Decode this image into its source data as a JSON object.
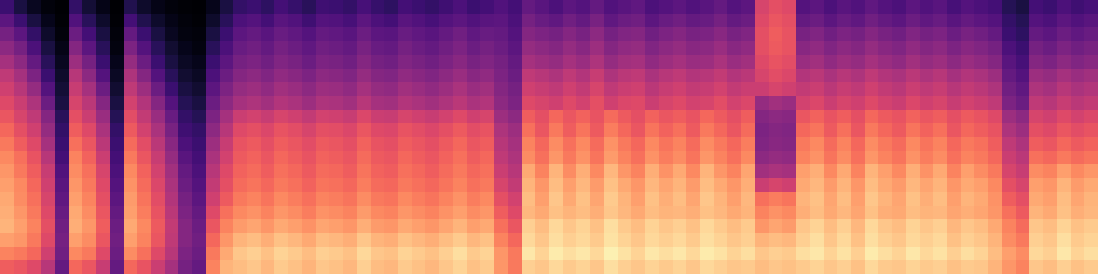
{
  "chart_data": {
    "type": "heatmap",
    "tick_labels": false,
    "color": "magma",
    "zlim": [
      0,
      100
    ],
    "z": [
      [
        20,
        12,
        6,
        2,
        0,
        18,
        10,
        4,
        0,
        14,
        8,
        4,
        2,
        1,
        0,
        5,
        12,
        18,
        20,
        17,
        22,
        19,
        16,
        21,
        20,
        18,
        23,
        19,
        17,
        22,
        20,
        18,
        21,
        24,
        20,
        22,
        25,
        22,
        30,
        27,
        24,
        28,
        26,
        30,
        25,
        27,
        29,
        24,
        26,
        28,
        25,
        27,
        30,
        26,
        28,
        58,
        62,
        60,
        26,
        28,
        24,
        27,
        25,
        29,
        26,
        24,
        28,
        25,
        27,
        23,
        26,
        24,
        22,
        15,
        12,
        22,
        20,
        24,
        21,
        23
      ],
      [
        28,
        20,
        12,
        5,
        1,
        25,
        16,
        8,
        1,
        22,
        14,
        8,
        4,
        2,
        1,
        8,
        16,
        24,
        26,
        22,
        27,
        25,
        21,
        26,
        25,
        23,
        28,
        24,
        22,
        27,
        25,
        23,
        26,
        28,
        25,
        27,
        28,
        24,
        34,
        31,
        29,
        33,
        30,
        35,
        29,
        32,
        33,
        28,
        31,
        33,
        30,
        31,
        34,
        30,
        32,
        60,
        64,
        62,
        30,
        32,
        28,
        31,
        29,
        33,
        30,
        28,
        32,
        29,
        31,
        27,
        30,
        28,
        26,
        18,
        15,
        26,
        24,
        28,
        25,
        27
      ],
      [
        34,
        28,
        18,
        8,
        2,
        32,
        22,
        12,
        2,
        30,
        20,
        12,
        6,
        3,
        2,
        12,
        20,
        28,
        30,
        27,
        31,
        29,
        26,
        30,
        29,
        27,
        32,
        28,
        27,
        31,
        29,
        27,
        30,
        33,
        29,
        31,
        30,
        26,
        38,
        36,
        34,
        38,
        35,
        40,
        34,
        37,
        38,
        33,
        36,
        38,
        35,
        36,
        39,
        35,
        37,
        62,
        66,
        63,
        35,
        37,
        33,
        36,
        34,
        38,
        35,
        33,
        37,
        34,
        36,
        32,
        35,
        33,
        30,
        20,
        17,
        30,
        28,
        32,
        29,
        31
      ],
      [
        40,
        34,
        24,
        12,
        4,
        38,
        28,
        16,
        3,
        36,
        26,
        16,
        9,
        5,
        3,
        16,
        24,
        31,
        33,
        30,
        34,
        32,
        29,
        33,
        32,
        30,
        35,
        31,
        30,
        34,
        32,
        30,
        33,
        36,
        32,
        34,
        32,
        28,
        42,
        40,
        38,
        42,
        39,
        44,
        38,
        41,
        42,
        37,
        40,
        42,
        39,
        40,
        43,
        39,
        41,
        62,
        65,
        63,
        39,
        41,
        37,
        40,
        38,
        42,
        39,
        37,
        41,
        38,
        40,
        36,
        39,
        37,
        34,
        24,
        20,
        34,
        32,
        36,
        33,
        35
      ],
      [
        46,
        40,
        30,
        16,
        6,
        44,
        34,
        20,
        5,
        42,
        32,
        20,
        12,
        7,
        5,
        20,
        28,
        34,
        36,
        33,
        37,
        35,
        32,
        36,
        35,
        33,
        38,
        34,
        33,
        37,
        35,
        33,
        36,
        39,
        35,
        37,
        34,
        30,
        46,
        44,
        42,
        46,
        43,
        48,
        42,
        45,
        46,
        41,
        44,
        46,
        43,
        44,
        47,
        43,
        45,
        60,
        63,
        61,
        43,
        45,
        41,
        44,
        42,
        46,
        43,
        41,
        45,
        42,
        44,
        40,
        43,
        41,
        38,
        27,
        23,
        38,
        36,
        40,
        37,
        39
      ],
      [
        52,
        46,
        36,
        20,
        8,
        50,
        40,
        26,
        7,
        48,
        38,
        26,
        16,
        9,
        7,
        24,
        32,
        38,
        40,
        37,
        41,
        39,
        36,
        40,
        39,
        37,
        42,
        38,
        37,
        41,
        39,
        37,
        40,
        43,
        39,
        41,
        36,
        32,
        52,
        50,
        48,
        52,
        49,
        54,
        48,
        51,
        52,
        47,
        50,
        52,
        49,
        50,
        53,
        49,
        51,
        58,
        61,
        59,
        49,
        51,
        47,
        50,
        48,
        52,
        49,
        47,
        51,
        48,
        50,
        46,
        49,
        47,
        44,
        30,
        26,
        44,
        42,
        46,
        43,
        45
      ],
      [
        56,
        50,
        42,
        26,
        10,
        54,
        46,
        32,
        9,
        52,
        44,
        32,
        20,
        12,
        9,
        28,
        36,
        42,
        44,
        41,
        45,
        43,
        40,
        44,
        43,
        41,
        46,
        42,
        41,
        45,
        43,
        41,
        44,
        47,
        43,
        45,
        38,
        34,
        56,
        54,
        52,
        56,
        53,
        58,
        52,
        55,
        56,
        51,
        54,
        56,
        53,
        54,
        57,
        53,
        55,
        55,
        58,
        56,
        53,
        55,
        51,
        54,
        52,
        56,
        53,
        51,
        55,
        52,
        54,
        50,
        53,
        51,
        48,
        33,
        29,
        48,
        46,
        50,
        47,
        49
      ],
      [
        60,
        55,
        48,
        32,
        12,
        58,
        51,
        38,
        12,
        57,
        49,
        38,
        26,
        15,
        12,
        32,
        40,
        46,
        48,
        45,
        49,
        47,
        44,
        48,
        47,
        45,
        50,
        46,
        45,
        49,
        47,
        45,
        48,
        51,
        47,
        49,
        40,
        36,
        60,
        58,
        56,
        60,
        57,
        62,
        56,
        59,
        60,
        55,
        58,
        60,
        57,
        58,
        61,
        57,
        59,
        42,
        45,
        43,
        57,
        59,
        55,
        58,
        56,
        60,
        57,
        55,
        59,
        56,
        58,
        54,
        57,
        55,
        52,
        36,
        32,
        52,
        50,
        54,
        51,
        53
      ],
      [
        64,
        58,
        52,
        38,
        16,
        62,
        55,
        43,
        15,
        61,
        53,
        43,
        31,
        18,
        15,
        36,
        46,
        55,
        57,
        54,
        58,
        56,
        53,
        57,
        56,
        54,
        59,
        55,
        54,
        58,
        56,
        54,
        57,
        60,
        56,
        58,
        44,
        40,
        66,
        62,
        68,
        64,
        67,
        63,
        69,
        65,
        62,
        67,
        64,
        66,
        63,
        68,
        65,
        62,
        66,
        38,
        40,
        39,
        64,
        67,
        63,
        66,
        62,
        68,
        65,
        63,
        67,
        64,
        66,
        62,
        65,
        63,
        60,
        44,
        40,
        58,
        56,
        60,
        57,
        59
      ],
      [
        68,
        62,
        56,
        42,
        18,
        66,
        60,
        47,
        18,
        65,
        57,
        47,
        35,
        21,
        18,
        40,
        50,
        60,
        62,
        59,
        63,
        61,
        58,
        62,
        61,
        59,
        64,
        60,
        59,
        63,
        61,
        59,
        62,
        65,
        61,
        63,
        48,
        44,
        70,
        64,
        72,
        66,
        71,
        65,
        73,
        68,
        64,
        71,
        67,
        70,
        65,
        72,
        68,
        64,
        69,
        36,
        38,
        37,
        68,
        71,
        65,
        70,
        64,
        72,
        68,
        65,
        71,
        67,
        70,
        64,
        68,
        66,
        63,
        48,
        44,
        62,
        60,
        64,
        61,
        63
      ],
      [
        72,
        66,
        60,
        46,
        20,
        70,
        64,
        51,
        20,
        69,
        61,
        51,
        39,
        24,
        20,
        44,
        54,
        63,
        65,
        62,
        66,
        64,
        61,
        65,
        64,
        62,
        67,
        63,
        62,
        66,
        64,
        62,
        65,
        68,
        64,
        66,
        50,
        46,
        74,
        68,
        76,
        70,
        75,
        69,
        77,
        72,
        68,
        75,
        71,
        74,
        69,
        76,
        72,
        68,
        73,
        37,
        39,
        38,
        72,
        75,
        69,
        74,
        68,
        76,
        72,
        69,
        75,
        71,
        74,
        68,
        72,
        70,
        66,
        52,
        48,
        66,
        64,
        68,
        65,
        67
      ],
      [
        75,
        70,
        63,
        50,
        22,
        74,
        67,
        55,
        22,
        72,
        64,
        54,
        42,
        27,
        22,
        47,
        57,
        65,
        67,
        64,
        68,
        66,
        63,
        67,
        66,
        64,
        69,
        65,
        64,
        68,
        66,
        64,
        67,
        70,
        66,
        68,
        52,
        48,
        76,
        70,
        78,
        72,
        77,
        71,
        79,
        74,
        70,
        77,
        73,
        76,
        71,
        78,
        74,
        70,
        75,
        40,
        42,
        41,
        74,
        77,
        71,
        76,
        70,
        78,
        74,
        71,
        77,
        73,
        76,
        70,
        74,
        72,
        68,
        55,
        51,
        70,
        68,
        72,
        69,
        71
      ],
      [
        78,
        72,
        66,
        54,
        25,
        76,
        70,
        58,
        24,
        75,
        67,
        57,
        45,
        30,
        24,
        50,
        60,
        67,
        69,
        66,
        70,
        68,
        65,
        69,
        68,
        66,
        71,
        67,
        66,
        70,
        68,
        66,
        69,
        72,
        68,
        70,
        55,
        50,
        82,
        74,
        84,
        76,
        83,
        75,
        85,
        78,
        74,
        83,
        77,
        82,
        75,
        84,
        78,
        74,
        81,
        45,
        47,
        46,
        80,
        83,
        75,
        82,
        74,
        84,
        80,
        75,
        83,
        77,
        82,
        74,
        80,
        76,
        72,
        58,
        54,
        76,
        74,
        80,
        75,
        78
      ],
      [
        80,
        75,
        68,
        56,
        27,
        78,
        72,
        60,
        26,
        77,
        69,
        59,
        47,
        32,
        26,
        53,
        62,
        69,
        71,
        68,
        72,
        70,
        67,
        71,
        70,
        68,
        73,
        69,
        68,
        72,
        70,
        68,
        71,
        74,
        70,
        72,
        58,
        53,
        84,
        78,
        86,
        80,
        85,
        79,
        87,
        82,
        78,
        85,
        81,
        84,
        79,
        86,
        82,
        78,
        83,
        55,
        58,
        56,
        82,
        85,
        79,
        84,
        78,
        86,
        82,
        79,
        85,
        81,
        84,
        78,
        82,
        80,
        75,
        62,
        58,
        80,
        78,
        84,
        79,
        82
      ],
      [
        82,
        76,
        70,
        58,
        29,
        80,
        74,
        62,
        28,
        79,
        71,
        61,
        49,
        34,
        28,
        56,
        65,
        72,
        74,
        71,
        75,
        73,
        70,
        74,
        73,
        71,
        76,
        72,
        71,
        75,
        73,
        71,
        74,
        77,
        73,
        75,
        62,
        57,
        86,
        80,
        88,
        82,
        87,
        81,
        89,
        84,
        80,
        87,
        83,
        86,
        81,
        88,
        84,
        80,
        85,
        70,
        73,
        71,
        84,
        87,
        81,
        86,
        80,
        88,
        84,
        81,
        87,
        83,
        86,
        80,
        84,
        82,
        77,
        66,
        62,
        82,
        80,
        86,
        81,
        84
      ],
      [
        83,
        78,
        72,
        60,
        31,
        82,
        76,
        64,
        30,
        80,
        73,
        63,
        51,
        36,
        30,
        60,
        70,
        75,
        77,
        74,
        78,
        76,
        73,
        77,
        76,
        74,
        79,
        75,
        74,
        78,
        76,
        74,
        77,
        80,
        76,
        78,
        66,
        60,
        85,
        82,
        87,
        84,
        86,
        83,
        88,
        85,
        82,
        86,
        84,
        85,
        83,
        87,
        85,
        82,
        84,
        74,
        77,
        75,
        83,
        86,
        82,
        85,
        81,
        87,
        83,
        82,
        86,
        84,
        85,
        81,
        83,
        81,
        78,
        70,
        65,
        84,
        82,
        87,
        83,
        85
      ],
      [
        84,
        80,
        74,
        62,
        33,
        83,
        78,
        66,
        32,
        82,
        75,
        65,
        53,
        38,
        32,
        64,
        74,
        79,
        81,
        78,
        82,
        80,
        77,
        81,
        80,
        78,
        83,
        79,
        78,
        82,
        80,
        78,
        81,
        84,
        80,
        82,
        70,
        64,
        90,
        86,
        92,
        88,
        91,
        87,
        93,
        89,
        86,
        91,
        88,
        90,
        87,
        92,
        89,
        86,
        89,
        78,
        81,
        79,
        88,
        91,
        86,
        90,
        85,
        92,
        88,
        86,
        91,
        88,
        90,
        85,
        88,
        86,
        82,
        74,
        69,
        88,
        86,
        91,
        87,
        89
      ],
      [
        80,
        78,
        72,
        60,
        34,
        80,
        76,
        64,
        33,
        80,
        74,
        64,
        52,
        38,
        33,
        68,
        78,
        84,
        86,
        83,
        87,
        85,
        82,
        86,
        85,
        83,
        88,
        84,
        83,
        87,
        85,
        83,
        86,
        89,
        85,
        87,
        74,
        68,
        92,
        88,
        93,
        90,
        92,
        89,
        94,
        91,
        88,
        92,
        90,
        92,
        89,
        93,
        91,
        88,
        90,
        84,
        86,
        85,
        90,
        93,
        88,
        92,
        87,
        93,
        90,
        88,
        92,
        90,
        92,
        87,
        90,
        88,
        84,
        76,
        72,
        90,
        88,
        93,
        89,
        91
      ],
      [
        74,
        72,
        68,
        56,
        33,
        75,
        72,
        60,
        32,
        76,
        70,
        60,
        50,
        36,
        32,
        72,
        82,
        88,
        90,
        87,
        91,
        89,
        86,
        90,
        89,
        87,
        92,
        88,
        87,
        91,
        89,
        87,
        90,
        93,
        89,
        91,
        78,
        72,
        95,
        91,
        96,
        93,
        95,
        92,
        97,
        94,
        91,
        95,
        93,
        95,
        92,
        96,
        94,
        91,
        93,
        88,
        90,
        89,
        93,
        95,
        91,
        94,
        90,
        96,
        93,
        91,
        95,
        92,
        94,
        90,
        93,
        91,
        86,
        80,
        76,
        92,
        90,
        95,
        91,
        93
      ],
      [
        66,
        64,
        60,
        50,
        30,
        68,
        64,
        54,
        30,
        68,
        63,
        55,
        46,
        34,
        30,
        74,
        84,
        86,
        88,
        85,
        89,
        87,
        84,
        88,
        87,
        85,
        90,
        86,
        85,
        89,
        87,
        85,
        88,
        91,
        87,
        89,
        78,
        72,
        90,
        88,
        92,
        89,
        91,
        88,
        93,
        90,
        88,
        91,
        89,
        91,
        88,
        92,
        90,
        88,
        89,
        86,
        88,
        87,
        89,
        91,
        88,
        90,
        87,
        92,
        89,
        88,
        91,
        89,
        90,
        87,
        89,
        88,
        84,
        78,
        74,
        88,
        86,
        90,
        87,
        89
      ]
    ]
  }
}
